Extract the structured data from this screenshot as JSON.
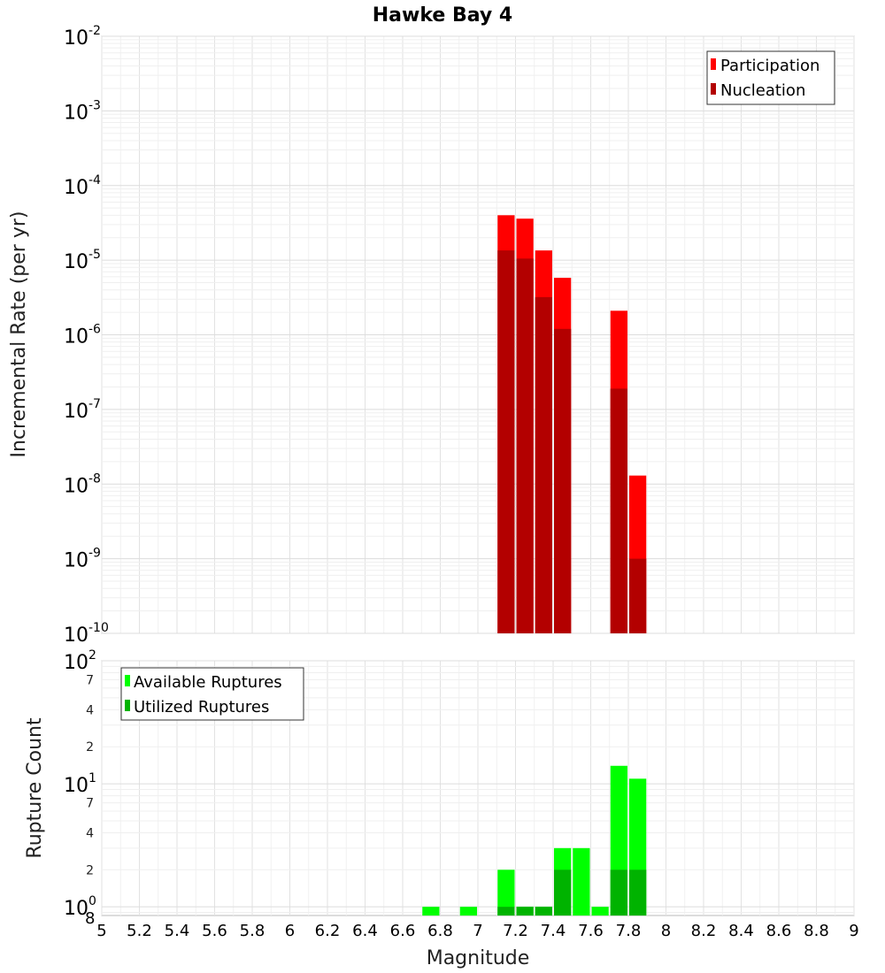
{
  "chart_data": [
    {
      "type": "bar",
      "title": "Hawke Bay 4",
      "xlabel": "Magnitude",
      "ylabel": "Incremental Rate (per yr)",
      "yscale": "log",
      "ylim": [
        1e-10,
        0.01
      ],
      "xlim": [
        5,
        9
      ],
      "bin_width": 0.1,
      "legend": {
        "position": "top-right"
      },
      "series": [
        {
          "name": "Participation",
          "color": "#ff0000",
          "points": [
            {
              "x": 7.15,
              "y": 4e-05
            },
            {
              "x": 7.25,
              "y": 3.6e-05
            },
            {
              "x": 7.35,
              "y": 1.35e-05
            },
            {
              "x": 7.45,
              "y": 5.8e-06
            },
            {
              "x": 7.75,
              "y": 2.1e-06
            },
            {
              "x": 7.85,
              "y": 1.3e-08
            }
          ]
        },
        {
          "name": "Nucleation",
          "color": "#b30000",
          "points": [
            {
              "x": 7.15,
              "y": 1.35e-05
            },
            {
              "x": 7.25,
              "y": 1.05e-05
            },
            {
              "x": 7.35,
              "y": 3.2e-06
            },
            {
              "x": 7.45,
              "y": 1.2e-06
            },
            {
              "x": 7.75,
              "y": 1.9e-07
            },
            {
              "x": 7.85,
              "y": 1e-09
            }
          ]
        }
      ],
      "y_ticks": [
        {
          "base": "10",
          "exp": "-10"
        },
        {
          "base": "10",
          "exp": "-9"
        },
        {
          "base": "10",
          "exp": "-8"
        },
        {
          "base": "10",
          "exp": "-7"
        },
        {
          "base": "10",
          "exp": "-6"
        },
        {
          "base": "10",
          "exp": "-5"
        },
        {
          "base": "10",
          "exp": "-4"
        },
        {
          "base": "10",
          "exp": "-3"
        },
        {
          "base": "10",
          "exp": "-2"
        }
      ]
    },
    {
      "type": "bar",
      "xlabel": "Magnitude",
      "ylabel": "Rupture Count",
      "yscale": "log",
      "ylim": [
        0.85,
        100
      ],
      "xlim": [
        5,
        9
      ],
      "bin_width": 0.1,
      "legend": {
        "position": "top-left"
      },
      "series": [
        {
          "name": "Available Ruptures",
          "color": "#00ff00",
          "points": [
            {
              "x": 6.75,
              "y": 1
            },
            {
              "x": 6.95,
              "y": 1
            },
            {
              "x": 7.15,
              "y": 2
            },
            {
              "x": 7.25,
              "y": 1
            },
            {
              "x": 7.35,
              "y": 1
            },
            {
              "x": 7.45,
              "y": 3
            },
            {
              "x": 7.55,
              "y": 3
            },
            {
              "x": 7.65,
              "y": 1
            },
            {
              "x": 7.75,
              "y": 14
            },
            {
              "x": 7.85,
              "y": 11
            }
          ]
        },
        {
          "name": "Utilized Ruptures",
          "color": "#00b300",
          "points": [
            {
              "x": 7.15,
              "y": 1
            },
            {
              "x": 7.25,
              "y": 1
            },
            {
              "x": 7.35,
              "y": 1
            },
            {
              "x": 7.45,
              "y": 2
            },
            {
              "x": 7.75,
              "y": 2
            },
            {
              "x": 7.85,
              "y": 2
            }
          ]
        }
      ],
      "y_major_ticks": [
        {
          "base": "10",
          "exp": "0"
        },
        {
          "base": "10",
          "exp": "1"
        },
        {
          "base": "10",
          "exp": "2"
        }
      ],
      "y_minor_ticks": [
        {
          "value": 2,
          "label": "2"
        },
        {
          "value": 4,
          "label": "4"
        },
        {
          "value": 7,
          "label": "7"
        },
        {
          "value": 20,
          "label": "2"
        },
        {
          "value": 40,
          "label": "4"
        },
        {
          "value": 70,
          "label": "7"
        }
      ],
      "y_floor_label": "8"
    }
  ],
  "x_ticks": [
    "5",
    "5.2",
    "5.4",
    "5.6",
    "5.8",
    "6",
    "6.2",
    "6.4",
    "6.6",
    "6.8",
    "7",
    "7.2",
    "7.4",
    "7.6",
    "7.8",
    "8",
    "8.2",
    "8.4",
    "8.6",
    "8.8",
    "9"
  ]
}
